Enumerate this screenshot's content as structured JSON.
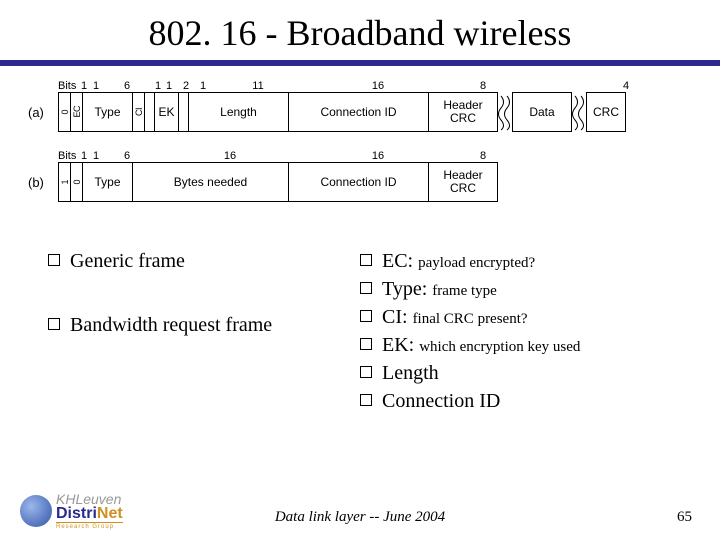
{
  "title": "802. 16 - Broadband wireless",
  "diagram_a": {
    "label": "(a)",
    "bits_prefix": "Bits",
    "fields": [
      {
        "bits": "1",
        "label": "0",
        "width": 12,
        "vertical": true
      },
      {
        "bits": "1",
        "label": "EC",
        "width": 12,
        "vertical": true
      },
      {
        "bits": "6",
        "label": "Type",
        "width": 50
      },
      {
        "bits": "1",
        "label": "CI",
        "width": 12,
        "vertical": true
      },
      {
        "bits": "1",
        "label": "",
        "width": 10
      },
      {
        "bits": "2",
        "label": "EK",
        "width": 24
      },
      {
        "bits": "1",
        "label": "",
        "width": 10
      },
      {
        "bits": "11",
        "label": "Length",
        "width": 100
      },
      {
        "bits": "16",
        "label": "Connection ID",
        "width": 140
      },
      {
        "bits": "8",
        "label": "Header CRC",
        "width": 70,
        "multiline": true
      },
      {
        "bits": "",
        "label": "Data",
        "width": 60,
        "break_before": true
      },
      {
        "bits": "4",
        "label": "CRC",
        "width": 40,
        "break_before": true
      }
    ]
  },
  "diagram_b": {
    "label": "(b)",
    "bits_prefix": "Bits",
    "fields": [
      {
        "bits": "1",
        "label": "1",
        "width": 12,
        "vertical": true
      },
      {
        "bits": "1",
        "label": "0",
        "width": 12,
        "vertical": true
      },
      {
        "bits": "6",
        "label": "Type",
        "width": 50
      },
      {
        "bits": "16",
        "label": "Bytes needed",
        "width": 156
      },
      {
        "bits": "16",
        "label": "Connection ID",
        "width": 140
      },
      {
        "bits": "8",
        "label": "Header CRC",
        "width": 70,
        "multiline": true
      }
    ]
  },
  "left_items": [
    {
      "text": "Generic frame"
    },
    {
      "text": "",
      "spacer": true
    },
    {
      "text": "Bandwidth request frame"
    }
  ],
  "right_items": [
    {
      "main": "EC: ",
      "sub": "payload encrypted?"
    },
    {
      "main": "Type: ",
      "sub": "frame type"
    },
    {
      "main": "CI: ",
      "sub": "final CRC present?"
    },
    {
      "main": "EK: ",
      "sub": "which encryption key used"
    },
    {
      "main": "Length",
      "sub": ""
    },
    {
      "main": "Connection ID",
      "sub": ""
    }
  ],
  "footer": "Data link  layer  --  June 2004",
  "page": "65",
  "logo": {
    "top": "KHLeuven",
    "main_left": "Distri",
    "main_right": "Net",
    "sub": "Research Group"
  }
}
